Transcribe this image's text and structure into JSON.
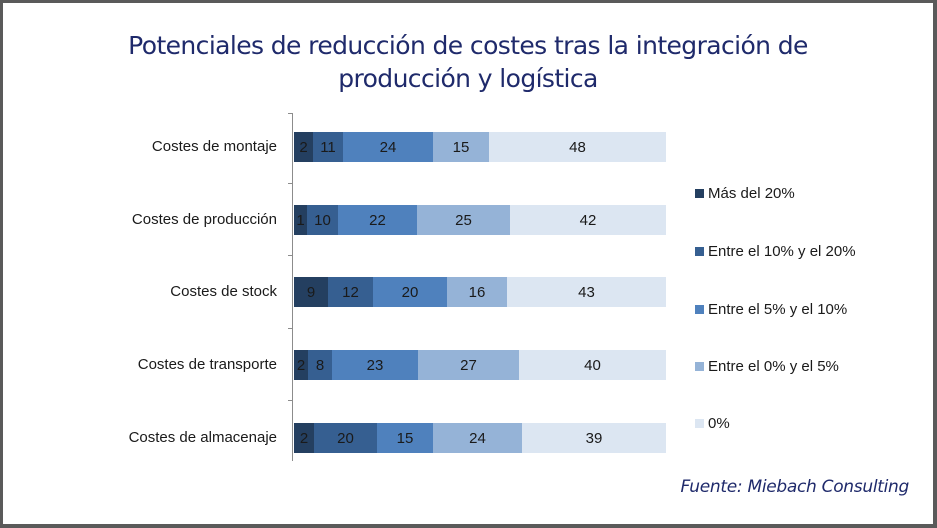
{
  "title": "Potenciales de reducción de costes tras la integración de producción y logística",
  "title_lines": [
    "Potenciales de reducción de costes tras la integración de",
    "producción y logística"
  ],
  "source": "Fuente: Miebach Consulting",
  "colors": {
    "title": "#1f2a6b",
    "frame": "#5a5a5a",
    "series": [
      "#243f60",
      "#365f91",
      "#4f81bd",
      "#95b3d7",
      "#dce6f2"
    ]
  },
  "legend": [
    {
      "label": "Más del 20%",
      "color": "#243f60"
    },
    {
      "label": "Entre el 10% y el 20%",
      "color": "#365f91"
    },
    {
      "label": "Entre el 5% y el 10%",
      "color": "#4f81bd"
    },
    {
      "label": "Entre el 0% y el 5%",
      "color": "#95b3d7"
    },
    {
      "label": "0%",
      "color": "#dce6f2"
    }
  ],
  "chart_data": {
    "type": "bar",
    "orientation": "horizontal",
    "stacked": true,
    "title": "Potenciales de reducción de costes tras la integración de producción y logística",
    "xlabel": "",
    "ylabel": "",
    "categories": [
      "Costes de montaje",
      "Costes de producción",
      "Costes de stock",
      "Costes de transporte",
      "Costes de almacenaje"
    ],
    "series": [
      {
        "name": "Más del 20%",
        "values": [
          2,
          1,
          9,
          2,
          2
        ]
      },
      {
        "name": "Entre el 10% y el 20%",
        "values": [
          11,
          10,
          12,
          8,
          20
        ]
      },
      {
        "name": "Entre el 5% y el 10%",
        "values": [
          24,
          22,
          20,
          23,
          15
        ]
      },
      {
        "name": "Entre el 0% y el 5%",
        "values": [
          15,
          25,
          16,
          27,
          24
        ]
      },
      {
        "name": "0%",
        "values": [
          48,
          42,
          43,
          40,
          39
        ]
      }
    ],
    "legend_position": "right",
    "grid": false,
    "data_labels": true,
    "source": "Fuente: Miebach Consulting"
  },
  "rows": [
    {
      "label": "Costes de montaje",
      "values": [
        "2",
        "11",
        "24",
        "15",
        "48"
      ],
      "widths": [
        19,
        30,
        90,
        56,
        177
      ]
    },
    {
      "label": "Costes de producción",
      "values": [
        "1",
        "10",
        "22",
        "25",
        "42"
      ],
      "widths": [
        13,
        31,
        79,
        93,
        156
      ]
    },
    {
      "label": "Costes de stock",
      "values": [
        "9",
        "12",
        "20",
        "16",
        "43"
      ],
      "widths": [
        34,
        45,
        74,
        60,
        159
      ]
    },
    {
      "label": "Costes de transporte",
      "values": [
        "2",
        "8",
        "23",
        "27",
        "40"
      ],
      "widths": [
        14,
        24,
        86,
        101,
        147
      ]
    },
    {
      "label": "Costes de almacenaje",
      "values": [
        "2",
        "20",
        "15",
        "24",
        "39"
      ],
      "widths": [
        20,
        63,
        56,
        89,
        144
      ]
    }
  ]
}
